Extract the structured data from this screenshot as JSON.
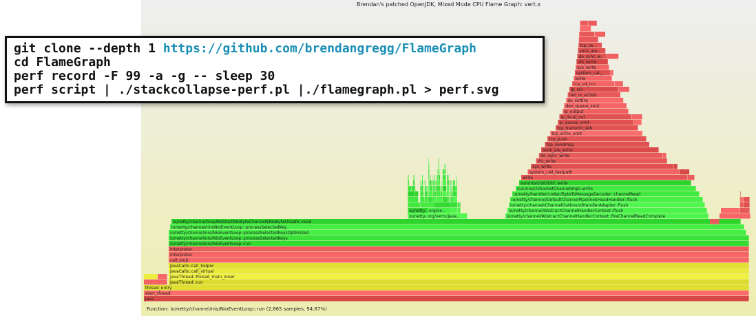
{
  "flamegraph": {
    "title": "Brendan's patched OpenJDK, Mixed Mode CPU Flame Graph: vert.x",
    "status": "Function: io/netty/channel/nio/NioEventLoop::run (2,865 samples, 94.87%)",
    "colors": {
      "java": "#3ee63e",
      "jvm": "#e8e83a",
      "kernel": "#f0a030",
      "native": "#ec5c5c"
    },
    "frames": [
      "java",
      "start_thread",
      "thread_entry",
      "JavaThread::run",
      "JavaThread::thread_main_inner",
      "JavaCalls::call_virtual",
      "JavaCalls::call_helper",
      "call_stub",
      "Interpreter",
      "io/netty/channel/nio/NioEventLoop::run",
      "io/netty/channel/nio/NioEventLoop::processSelectedKeys",
      "io/netty/channel/nio/NioEventLoop::processSelectedKeysOptimized",
      "io/netty/channel/nio/NioEventLoop::processSelectedKey",
      "io/netty/channel/nio/AbstractNioByteChannel$NioByteUnsafe::read",
      "io/netty/channel/AbstractChannelHandlerContext::fireChannelRead",
      "io/netty/handler/codec/ByteToMessageDecoder::channelRead",
      "org/vertx/java/core/net/impl/VertxHandler::channelRead",
      "org/vertx/java/core/http/impl/DefaultHttpServer$ServerHandler::doMessageReceived",
      "io/netty/channel/AbstractChannelHandlerContext::fireChannelReadComplete",
      "io/netty/channel/AbstractChannelHandlerContext::flush",
      "io/netty/channel/ChannelOutboundHandlerAdapter::flush",
      "io/netty/channel/DefaultChannelPipeline$HeadHandler::flush",
      "sun/nio/ch/SocketChannelImpl::write",
      "sun/nio/ch/IOUtil::write",
      "write",
      "system_call_fastpath",
      "sys_write",
      "vfs_write",
      "do_sync_write",
      "sock_aio_write",
      "tcp_sendmsg",
      "tcp_push",
      "tcp_write_xmit",
      "tcp_transmit_skb",
      "ip_queue_xmit",
      "ip_local_out",
      "ip_output",
      "dev_queue_xmit",
      "do_softirq",
      "net_rx_action",
      "ip_rcv",
      "tcp_v4_rcv"
    ]
  },
  "commands": {
    "line1_prefix": "git clone --depth 1 ",
    "line1_url": "https://github.com/brendangregg/FlameGraph",
    "line2": "cd FlameGraph",
    "line3": "perf record -F 99 -a -g -- sleep 30",
    "line4": "perf script | ./stackcollapse-perf.pl |./flamegraph.pl > perf.svg"
  }
}
